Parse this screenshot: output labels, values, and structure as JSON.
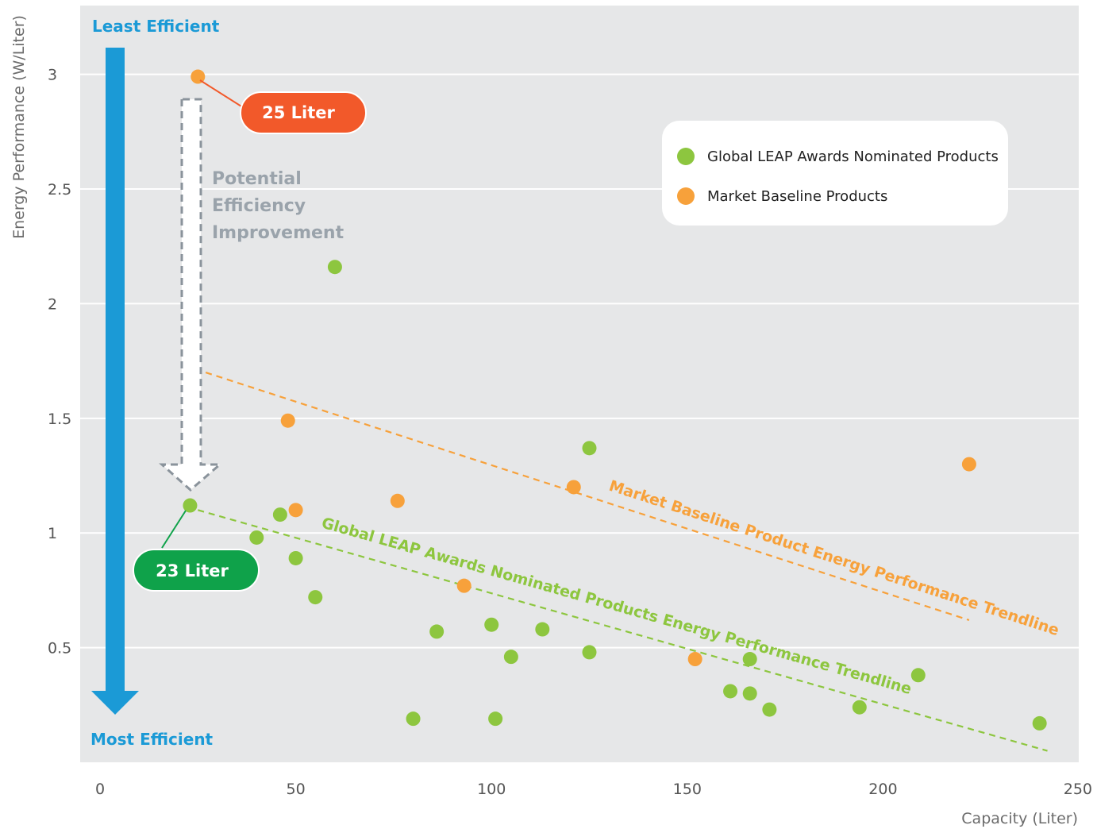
{
  "chart_data": {
    "type": "scatter",
    "xlabel": "Capacity (Liter)",
    "ylabel": "Energy Performance (W/Liter)",
    "xlim": [
      0,
      250
    ],
    "ylim": [
      0,
      3.3
    ],
    "x_ticks": [
      "0",
      "50",
      "100",
      "150",
      "200",
      "250"
    ],
    "y_ticks": [
      "3",
      "2.5",
      "2",
      "1.5",
      "1",
      "0.5"
    ],
    "grid": true,
    "legend_position": "top-right",
    "series": [
      {
        "name": "Global LEAP Awards Nominated Products",
        "color": "#8dc63f",
        "points": [
          [
            23,
            1.12
          ],
          [
            40,
            0.98
          ],
          [
            46,
            1.08
          ],
          [
            50,
            0.89
          ],
          [
            55,
            0.72
          ],
          [
            60,
            2.16
          ],
          [
            80,
            0.19
          ],
          [
            86,
            0.57
          ],
          [
            100,
            0.6
          ],
          [
            101,
            0.19
          ],
          [
            105,
            0.46
          ],
          [
            113,
            0.58
          ],
          [
            125,
            1.37
          ],
          [
            125,
            0.48
          ],
          [
            161,
            0.31
          ],
          [
            166,
            0.3
          ],
          [
            166,
            0.45
          ],
          [
            171,
            0.23
          ],
          [
            194,
            0.24
          ],
          [
            209,
            0.38
          ],
          [
            240,
            0.17
          ]
        ]
      },
      {
        "name": "Market Baseline Products",
        "color": "#f7a13b",
        "points": [
          [
            25,
            2.99
          ],
          [
            48,
            1.49
          ],
          [
            50,
            1.1
          ],
          [
            76,
            1.14
          ],
          [
            93,
            0.77
          ],
          [
            121,
            1.2
          ],
          [
            152,
            0.45
          ],
          [
            222,
            1.3
          ]
        ]
      }
    ],
    "trendlines": [
      {
        "label": "Market Baseline Product Energy Performance Trendline",
        "color": "#f7a13b",
        "from": [
          27,
          1.7
        ],
        "to": [
          222,
          0.62
        ]
      },
      {
        "label": "Global LEAP Awards Nominated Products Energy Performance Trendline",
        "color": "#8dc63f",
        "from": [
          25,
          1.1
        ],
        "to": [
          242,
          0.05
        ]
      }
    ],
    "annotations": {
      "top_arrow_label": "Least Efficient",
      "bottom_arrow_label": "Most Efficient",
      "potential_lines": [
        "Potential",
        "Efficiency",
        "Improvement"
      ],
      "baseline_callout": {
        "text": "25 Liter",
        "color": "#f2592a",
        "point": [
          25,
          2.99
        ]
      },
      "nominated_callout": {
        "text": "23 Liter",
        "color": "#0fa24a",
        "point": [
          23,
          1.12
        ]
      },
      "arrow_color": "#1b9ad6"
    }
  }
}
